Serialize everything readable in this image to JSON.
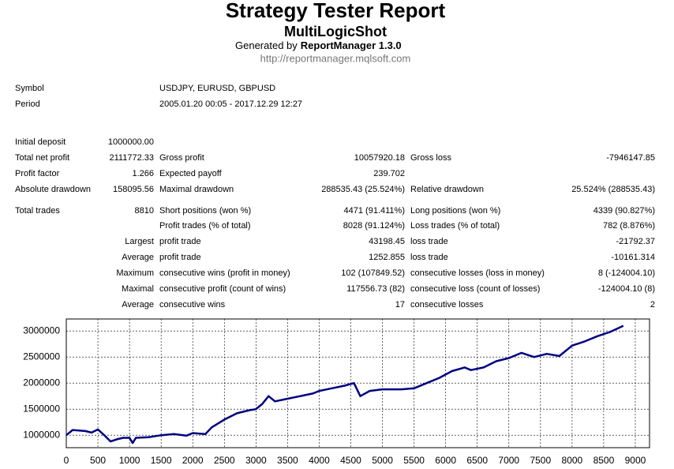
{
  "header": {
    "title": "Strategy Tester Report",
    "subtitle": "MultiLogicShot",
    "generated_prefix": "Generated by",
    "generator": "ReportManager 1.3.0",
    "url": "http://reportmanager.mqlsoft.com"
  },
  "table": {
    "rows": [
      [
        "Symbol",
        null,
        "USDJPY, EURUSD, GBPUSD"
      ],
      [
        "Period",
        null,
        "2005.01.20 00:05 - 2017.12.29 12:27"
      ],
      [
        "Initial deposit",
        "1000000.00"
      ],
      [
        "Total net profit",
        "2111772.33",
        "Gross profit",
        "10057920.18",
        "Gross loss",
        "-7946147.85"
      ],
      [
        "Profit factor",
        "1.266",
        "Expected payoff",
        "239.702"
      ],
      [
        "Absolute drawdown",
        "158095.56",
        "Maximal drawdown",
        "288535.43 (25.524%)",
        "Relative drawdown",
        "25.524% (288535.43)"
      ],
      [
        "Total trades",
        "8810",
        "Short positions (won %)",
        "4471 (91.411%)",
        "Long positions (won %)",
        "4339 (90.827%)"
      ],
      [
        null,
        null,
        "Profit trades (% of total)",
        "8028 (91.124%)",
        "Loss trades (% of total)",
        "782 (8.876%)"
      ],
      [
        null,
        "Largest",
        "profit trade",
        "43198.45",
        "loss trade",
        "-21792.37"
      ],
      [
        null,
        "Average",
        "profit trade",
        "1252.855",
        "loss trade",
        "-10161.314"
      ],
      [
        null,
        "Maximum",
        "consecutive wins (profit in money)",
        "102 (107849.52)",
        "consecutive losses (loss in money)",
        "8 (-124004.10)"
      ],
      [
        null,
        "Maximal",
        "consecutive profit (count of wins)",
        "117556.73 (82)",
        "consecutive loss (count of losses)",
        "-124004.10 (8)"
      ],
      [
        null,
        "Average",
        "consecutive wins",
        "17",
        "consecutive losses",
        "2"
      ]
    ]
  },
  "chart_data": {
    "type": "line",
    "x": [
      0,
      100,
      300,
      400,
      500,
      600,
      700,
      800,
      900,
      1000,
      1050,
      1100,
      1300,
      1500,
      1700,
      1900,
      2000,
      2200,
      2300,
      2500,
      2700,
      2900,
      3000,
      3100,
      3200,
      3300,
      3500,
      3700,
      3900,
      4000,
      4200,
      4400,
      4550,
      4650,
      4800,
      5000,
      5300,
      5500,
      5700,
      5900,
      6100,
      6300,
      6400,
      6600,
      6800,
      7000,
      7200,
      7400,
      7600,
      7800,
      8000,
      8200,
      8400,
      8600,
      8810
    ],
    "series": [
      {
        "color": "#000080",
        "values": [
          1000000,
          1100000,
          1080000,
          1050000,
          1110000,
          1000000,
          880000,
          920000,
          950000,
          950000,
          850000,
          950000,
          960000,
          1000000,
          1020000,
          990000,
          1040000,
          1020000,
          1150000,
          1300000,
          1420000,
          1480000,
          1500000,
          1600000,
          1750000,
          1650000,
          1700000,
          1750000,
          1800000,
          1850000,
          1900000,
          1950000,
          2000000,
          1750000,
          1850000,
          1880000,
          1880000,
          1900000,
          2000000,
          2100000,
          2230000,
          2300000,
          2250000,
          2300000,
          2420000,
          2480000,
          2580000,
          2500000,
          2560000,
          2520000,
          2720000,
          2800000,
          2900000,
          2980000,
          3100000
        ]
      }
    ],
    "xlim": [
      0,
      9225
    ],
    "ylim": [
      760000,
      3230000
    ],
    "xticks": [
      0,
      500,
      1000,
      1500,
      2000,
      2500,
      3000,
      3500,
      4000,
      4500,
      5000,
      5500,
      6000,
      6500,
      7000,
      7500,
      8000,
      8500,
      9000
    ],
    "yticks": [
      1000000,
      1500000,
      2000000,
      2500000,
      3000000
    ],
    "grid": true
  }
}
